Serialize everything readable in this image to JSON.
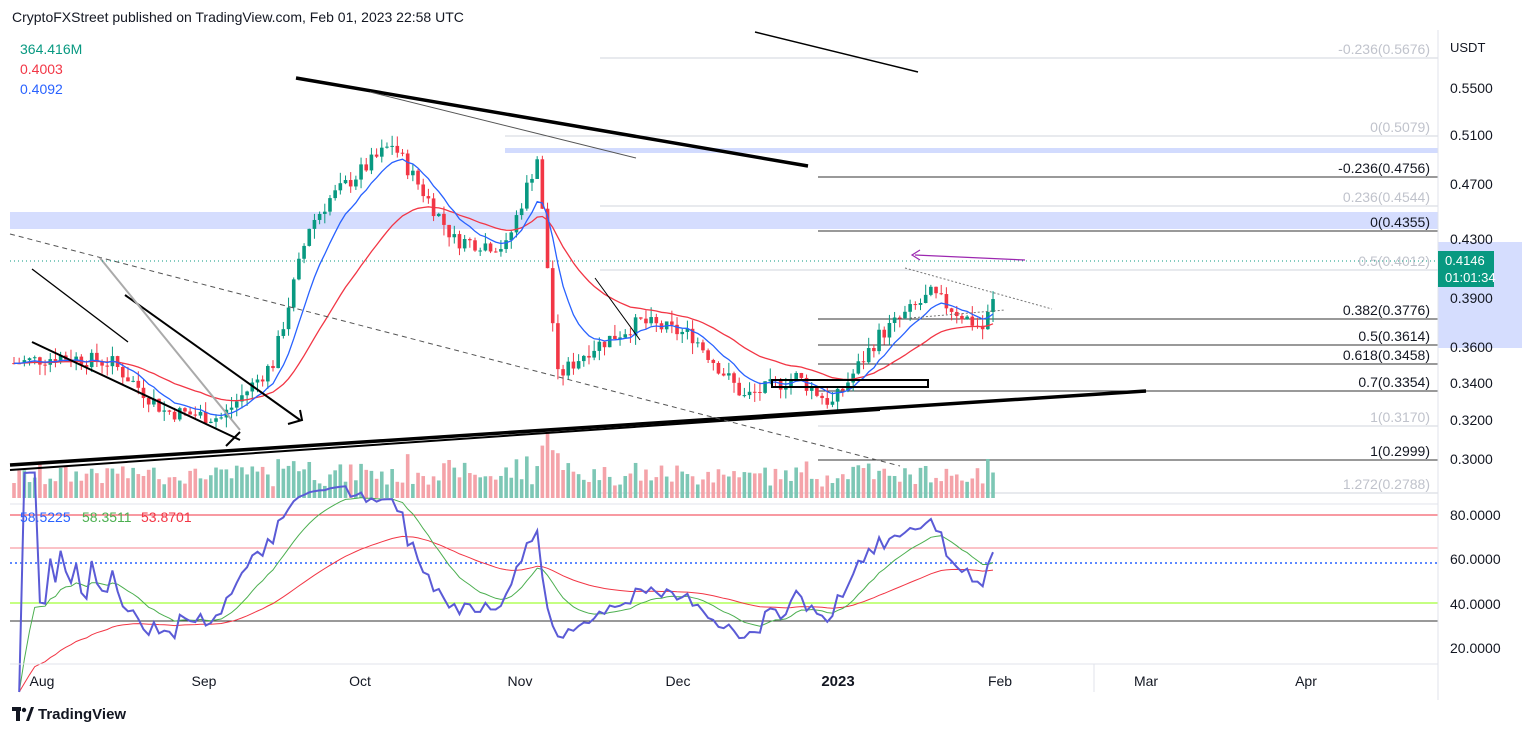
{
  "header": {
    "publisher_line": "CryptoFXStreet published on TradingView.com, Feb 01, 2023 22:58 UTC"
  },
  "legend": {
    "volume": "364.416M",
    "ema_red": "0.4003",
    "ema_blue": "0.4092"
  },
  "price_axis": {
    "currency": "USDT",
    "ticks": [
      "0.5500",
      "0.5100",
      "0.4700",
      "0.4300",
      "0.3900",
      "0.3600",
      "0.3400",
      "0.3200",
      "0.3000"
    ],
    "current_price": "0.4146",
    "countdown": "01:01:34"
  },
  "fib_levels": [
    {
      "label": "-0.236(0.5676)",
      "faded": true
    },
    {
      "label": "0(0.5079)",
      "faded": true
    },
    {
      "label": "-0.236(0.4756)",
      "faded": false
    },
    {
      "label": "0.236(0.4544)",
      "faded": true
    },
    {
      "label": "0(0.4355)",
      "faded": false
    },
    {
      "label": "0.5(0.4012)",
      "faded": true
    },
    {
      "label": "0.382(0.3776)",
      "faded": false
    },
    {
      "label": "0.5(0.3614)",
      "faded": false
    },
    {
      "label": "0.618(0.3458)",
      "faded": false
    },
    {
      "label": "0.7(0.3354)",
      "faded": false
    },
    {
      "label": "1(0.3170)",
      "faded": true
    },
    {
      "label": "1(0.2999)",
      "faded": false
    },
    {
      "label": "1.272(0.2788)",
      "faded": true
    }
  ],
  "rsi_panel": {
    "values": [
      "58.5225",
      "58.3511",
      "53.8701"
    ],
    "ticks": [
      "80.0000",
      "60.0000",
      "40.0000",
      "20.0000"
    ]
  },
  "time_axis": [
    "Aug",
    "Sep",
    "Oct",
    "Nov",
    "Dec",
    "2023",
    "Mar",
    "Apr",
    "Feb"
  ],
  "branding": "TradingView",
  "colors": {
    "up": "#089981",
    "down": "#f23645",
    "ema_blue": "#2962ff",
    "ema_red": "#f23645",
    "vol_up": "#7dc7b5",
    "vol_down": "#f4a3a9",
    "rsi": "#5b5bd6",
    "zone": "#c7d2fe"
  },
  "chart_data": {
    "type": "candlestick",
    "symbol_quote": "USDT",
    "y_range": [
      0.2788,
      0.5676
    ],
    "approx_close_path": [
      {
        "date": "2022-07-27",
        "close": 0.37
      },
      {
        "date": "2022-08-05",
        "close": 0.375
      },
      {
        "date": "2022-08-15",
        "close": 0.37
      },
      {
        "date": "2022-08-25",
        "close": 0.335
      },
      {
        "date": "2022-09-05",
        "close": 0.33
      },
      {
        "date": "2022-09-15",
        "close": 0.37
      },
      {
        "date": "2022-09-22",
        "close": 0.47
      },
      {
        "date": "2022-09-26",
        "close": 0.49
      },
      {
        "date": "2022-10-08",
        "close": 0.53
      },
      {
        "date": "2022-10-20",
        "close": 0.46
      },
      {
        "date": "2022-10-30",
        "close": 0.455
      },
      {
        "date": "2022-11-05",
        "close": 0.52
      },
      {
        "date": "2022-11-09",
        "close": 0.36
      },
      {
        "date": "2022-11-15",
        "close": 0.38
      },
      {
        "date": "2022-11-25",
        "close": 0.4
      },
      {
        "date": "2022-12-05",
        "close": 0.39
      },
      {
        "date": "2022-12-15",
        "close": 0.345
      },
      {
        "date": "2022-12-25",
        "close": 0.36
      },
      {
        "date": "2023-01-01",
        "close": 0.34
      },
      {
        "date": "2023-01-10",
        "close": 0.39
      },
      {
        "date": "2023-01-20",
        "close": 0.42
      },
      {
        "date": "2023-01-30",
        "close": 0.395
      },
      {
        "date": "2023-02-01",
        "close": 0.4146
      }
    ],
    "rsi_levels": [
      80,
      60,
      40,
      20
    ]
  }
}
